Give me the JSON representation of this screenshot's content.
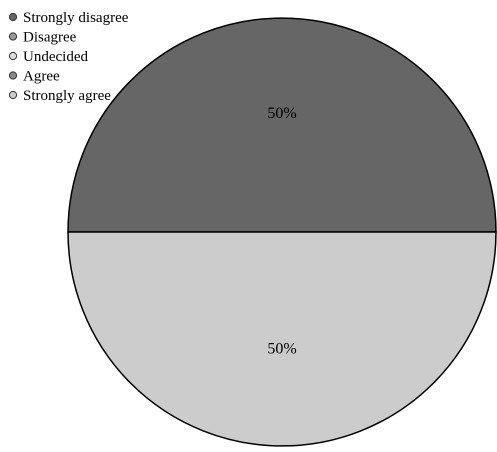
{
  "chart_data": {
    "type": "pie",
    "categories": [
      "Strongly disagree",
      "Disagree",
      "Undecided",
      "Agree",
      "Strongly agree"
    ],
    "values": [
      50,
      0,
      0,
      0,
      50
    ],
    "labels": [
      "50%",
      "",
      "",
      "",
      "50%"
    ],
    "colors": [
      "#666666",
      "#999999",
      "#dddddd",
      "#888888",
      "#cccccc"
    ],
    "legend_position": "top-left",
    "start_angle_deg": 180,
    "direction": "clockwise"
  }
}
